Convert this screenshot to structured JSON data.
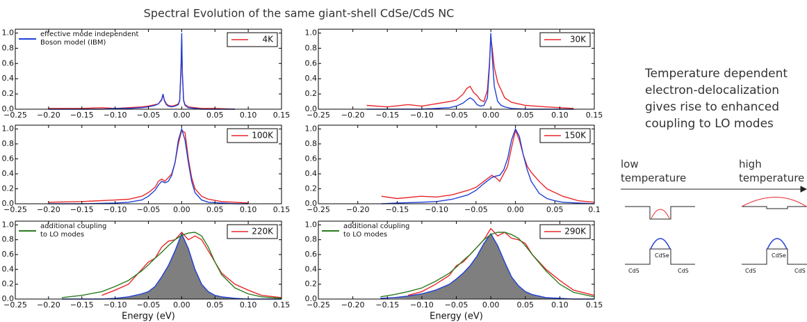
{
  "title": "Spectral Evolution of the same giant-shell CdSe/CdS NC",
  "chart_data": [
    {
      "type": "line",
      "legend_title": null,
      "x": [
        -0.2,
        -0.15,
        -0.12,
        -0.1,
        -0.08,
        -0.06,
        -0.05,
        -0.04,
        -0.035,
        -0.03,
        -0.028,
        -0.026,
        -0.023,
        -0.02,
        -0.015,
        -0.01,
        -0.005,
        -0.003,
        -0.001,
        0,
        0.001,
        0.003,
        0.005,
        0.01,
        0.02,
        0.03,
        0.05,
        0.08
      ],
      "series": [
        {
          "name": "4K",
          "color": "#e8262a",
          "legend": "upper right",
          "values": [
            0.01,
            0.01,
            0.02,
            0.01,
            0.02,
            0.03,
            0.04,
            0.06,
            0.07,
            0.12,
            0.19,
            0.12,
            0.07,
            0.05,
            0.04,
            0.05,
            0.07,
            0.12,
            0.5,
            0.93,
            0.45,
            0.12,
            0.06,
            0.03,
            0.02,
            0.01,
            0.01,
            0
          ]
        },
        {
          "name": "effective mode independent\nBoson model (IBM)",
          "color": "#1f3fd6",
          "legend": "upper left",
          "values": [
            0,
            0,
            0,
            0.01,
            0.01,
            0.02,
            0.03,
            0.05,
            0.07,
            0.13,
            0.2,
            0.11,
            0.06,
            0.04,
            0.03,
            0.04,
            0.06,
            0.11,
            0.55,
            1.0,
            0.5,
            0.11,
            0.05,
            0.02,
            0.01,
            0,
            0,
            0
          ]
        }
      ],
      "xlim": [
        -0.25,
        0.15
      ],
      "ylim": [
        0,
        1.05
      ],
      "xticks": [
        {
          "value": -0.25,
          "label": "−0.25"
        },
        {
          "value": -0.2,
          "label": "−0.20"
        },
        {
          "value": -0.15,
          "label": "−0.15"
        },
        {
          "value": -0.1,
          "label": "−0.10"
        },
        {
          "value": -0.05,
          "label": "−0.05"
        },
        {
          "value": 0,
          "label": "0.00"
        },
        {
          "value": 0.05,
          "label": "0.05"
        },
        {
          "value": 0.1,
          "label": "0.10"
        },
        {
          "value": 0.15,
          "label": "0.15"
        }
      ],
      "yticks": [
        {
          "value": 0,
          "label": "0.0"
        },
        0.2,
        0.4,
        0.6,
        0.8,
        {
          "value": 1,
          "label": "1.0"
        }
      ]
    },
    {
      "type": "line",
      "x": [
        -0.18,
        -0.15,
        -0.12,
        -0.1,
        -0.08,
        -0.06,
        -0.05,
        -0.04,
        -0.035,
        -0.03,
        -0.025,
        -0.02,
        -0.015,
        -0.01,
        -0.005,
        -0.002,
        0,
        0.002,
        0.005,
        0.01,
        0.015,
        0.02,
        0.03,
        0.05,
        0.08,
        0.1,
        0.12
      ],
      "series": [
        {
          "name": "30K",
          "color": "#e8262a",
          "legend": "upper right",
          "values": [
            0.05,
            0.03,
            0.06,
            0.04,
            0.07,
            0.1,
            0.12,
            0.2,
            0.27,
            0.3,
            0.22,
            0.18,
            0.12,
            0.1,
            0.25,
            0.6,
            0.95,
            0.8,
            0.55,
            0.35,
            0.25,
            0.15,
            0.09,
            0.05,
            0.03,
            0.02,
            0.01
          ]
        },
        {
          "color": "#1f3fd6",
          "values": [
            0,
            0,
            0,
            0,
            0.01,
            0.02,
            0.04,
            0.08,
            0.12,
            0.15,
            0.12,
            0.06,
            0.04,
            0.05,
            0.15,
            0.55,
            1.0,
            0.7,
            0.3,
            0.1,
            0.05,
            0.03,
            0.01,
            0,
            0,
            0,
            0
          ]
        }
      ],
      "xlim": [
        -0.25,
        0.15
      ],
      "ylim": [
        0,
        1.05
      ],
      "xticks": [
        {
          "value": -0.25,
          "label": "−0.25"
        },
        {
          "value": -0.2,
          "label": "−0.20"
        },
        {
          "value": -0.15,
          "label": "−0.15"
        },
        {
          "value": -0.1,
          "label": "−0.10"
        },
        {
          "value": -0.05,
          "label": "−0.05"
        },
        {
          "value": 0,
          "label": "0.00"
        },
        {
          "value": 0.05,
          "label": "0.05"
        },
        {
          "value": 0.1,
          "label": "0.10"
        },
        {
          "value": 0.15,
          "label": "0.15"
        }
      ],
      "yticks": [
        {
          "value": 0,
          "label": "0.0"
        },
        0.2,
        0.4,
        0.6,
        0.8,
        {
          "value": 1,
          "label": "1.0"
        }
      ]
    },
    {
      "type": "line",
      "x": [
        -0.2,
        -0.15,
        -0.1,
        -0.08,
        -0.06,
        -0.05,
        -0.04,
        -0.035,
        -0.03,
        -0.025,
        -0.02,
        -0.015,
        -0.01,
        -0.005,
        0,
        0.005,
        0.01,
        0.015,
        0.02,
        0.03,
        0.04,
        0.06,
        0.08,
        0.1
      ],
      "series": [
        {
          "name": "100K",
          "color": "#e8262a",
          "legend": "upper right",
          "values": [
            0.02,
            0.03,
            0.05,
            0.06,
            0.1,
            0.15,
            0.22,
            0.3,
            0.33,
            0.3,
            0.35,
            0.4,
            0.55,
            0.8,
            0.98,
            0.95,
            0.6,
            0.35,
            0.2,
            0.1,
            0.06,
            0.03,
            0.02,
            0.01
          ]
        },
        {
          "color": "#1f3fd6",
          "values": [
            0,
            0,
            0.01,
            0.02,
            0.05,
            0.1,
            0.18,
            0.25,
            0.3,
            0.28,
            0.3,
            0.38,
            0.55,
            0.85,
            1.0,
            0.85,
            0.55,
            0.3,
            0.15,
            0.05,
            0.02,
            0.01,
            0,
            0
          ]
        }
      ],
      "xlim": [
        -0.25,
        0.15
      ],
      "ylim": [
        0,
        1.05
      ],
      "xticks": [
        {
          "value": -0.25,
          "label": "−0.25"
        },
        {
          "value": -0.2,
          "label": "−0.20"
        },
        {
          "value": -0.15,
          "label": "−0.15"
        },
        {
          "value": -0.1,
          "label": "−0.10"
        },
        {
          "value": -0.05,
          "label": "−0.05"
        },
        {
          "value": 0,
          "label": "0.00"
        },
        {
          "value": 0.05,
          "label": "0.05"
        },
        {
          "value": 0.1,
          "label": "0.10"
        },
        {
          "value": 0.15,
          "label": "0.15"
        }
      ],
      "yticks": [
        {
          "value": 0,
          "label": "0.0"
        },
        0.2,
        0.4,
        0.6,
        0.8,
        {
          "value": 1,
          "label": "1.0"
        }
      ]
    },
    {
      "type": "line",
      "x": [
        -0.17,
        -0.15,
        -0.12,
        -0.1,
        -0.08,
        -0.06,
        -0.05,
        -0.04,
        -0.03,
        -0.025,
        -0.02,
        -0.015,
        -0.01,
        -0.005,
        0,
        0.005,
        0.01,
        0.015,
        0.02,
        0.03,
        0.04,
        0.05,
        0.06,
        0.08,
        0.1
      ],
      "series": [
        {
          "name": "150K",
          "color": "#e8262a",
          "legend": "upper right",
          "values": [
            0.1,
            0.07,
            0.1,
            0.09,
            0.12,
            0.18,
            0.22,
            0.3,
            0.38,
            0.35,
            0.3,
            0.4,
            0.5,
            0.75,
            0.98,
            0.85,
            0.65,
            0.5,
            0.42,
            0.3,
            0.2,
            0.15,
            0.1,
            0.04,
            0.02
          ]
        },
        {
          "color": "#1f3fd6",
          "values": [
            0,
            0.01,
            0.02,
            0.03,
            0.06,
            0.12,
            0.18,
            0.27,
            0.35,
            0.37,
            0.38,
            0.45,
            0.6,
            0.85,
            1.0,
            0.9,
            0.65,
            0.45,
            0.3,
            0.14,
            0.07,
            0.04,
            0.02,
            0.01,
            0
          ]
        }
      ],
      "xlim": [
        -0.25,
        0.1
      ],
      "ylim": [
        0,
        1.05
      ],
      "xticks": [
        {
          "value": -0.25,
          "label": "−0.25"
        },
        {
          "value": -0.2,
          "label": "−0.20"
        },
        {
          "value": -0.15,
          "label": "−0.15"
        },
        {
          "value": -0.1,
          "label": "−0.10"
        },
        {
          "value": -0.05,
          "label": "−0.05"
        },
        {
          "value": 0,
          "label": "0.00"
        },
        {
          "value": 0.05,
          "label": "0.05"
        },
        {
          "value": 0.1,
          "label": "0.1"
        }
      ],
      "yticks": [
        {
          "value": 0,
          "label": "0.0"
        },
        0.2,
        0.4,
        0.6,
        0.8,
        {
          "value": 1,
          "label": "1.0"
        }
      ]
    },
    {
      "type": "line",
      "xlabel": "Energy (eV)",
      "x": [
        -0.18,
        -0.15,
        -0.12,
        -0.1,
        -0.08,
        -0.06,
        -0.05,
        -0.04,
        -0.03,
        -0.02,
        -0.01,
        0,
        0.01,
        0.02,
        0.03,
        0.04,
        0.05,
        0.06,
        0.08,
        0.1,
        0.12,
        0.15
      ],
      "series": [
        {
          "color": "#1f3fd6",
          "fill": "#7f7f7f",
          "values": [
            0,
            0,
            0,
            0.01,
            0.03,
            0.07,
            0.1,
            0.17,
            0.3,
            0.45,
            0.65,
            0.88,
            0.68,
            0.4,
            0.2,
            0.1,
            0.05,
            0.03,
            0.01,
            0,
            0,
            0
          ]
        },
        {
          "name": "220K",
          "color": "#e8262a",
          "legend": "upper right",
          "values": [
            null,
            null,
            0.05,
            0.12,
            0.2,
            0.4,
            0.5,
            0.55,
            0.7,
            0.78,
            0.8,
            0.9,
            0.8,
            0.85,
            0.8,
            0.65,
            0.5,
            0.35,
            0.2,
            0.12,
            0.05,
            0.02
          ]
        },
        {
          "name": "additional coupling\nto LO modes",
          "color": "#2a7a1e",
          "legend": "upper left",
          "values": [
            0.02,
            0.05,
            0.1,
            0.17,
            0.25,
            0.38,
            0.46,
            0.55,
            0.63,
            0.72,
            0.8,
            0.86,
            0.89,
            0.9,
            0.85,
            0.7,
            0.5,
            0.33,
            0.15,
            0.07,
            0.03,
            0.01
          ]
        }
      ],
      "xlim": [
        -0.25,
        0.15
      ],
      "ylim": [
        0,
        1.05
      ],
      "xticks": [
        {
          "value": -0.25,
          "label": "−0.25"
        },
        {
          "value": -0.2,
          "label": "−0.20"
        },
        {
          "value": -0.15,
          "label": "−0.15"
        },
        {
          "value": -0.1,
          "label": "−0.10"
        },
        {
          "value": -0.05,
          "label": "−0.05"
        },
        {
          "value": 0,
          "label": "0.00"
        },
        {
          "value": 0.05,
          "label": "0.05"
        },
        {
          "value": 0.1,
          "label": "0.10"
        },
        {
          "value": 0.15,
          "label": "0.15"
        }
      ],
      "yticks": [
        {
          "value": 0,
          "label": "0.0"
        },
        0.2,
        0.4,
        0.6,
        0.8,
        {
          "value": 1,
          "label": "1.0"
        }
      ]
    },
    {
      "type": "line",
      "xlabel": "Energy (eV)",
      "x": [
        -0.16,
        -0.14,
        -0.12,
        -0.1,
        -0.08,
        -0.06,
        -0.05,
        -0.04,
        -0.03,
        -0.02,
        -0.01,
        0,
        0.01,
        0.02,
        0.03,
        0.04,
        0.05,
        0.06,
        0.08,
        0.1,
        0.12,
        0.15
      ],
      "series": [
        {
          "color": "#1f3fd6",
          "fill": "#7f7f7f",
          "values": [
            0.01,
            0.02,
            0.04,
            0.07,
            0.12,
            0.2,
            0.27,
            0.35,
            0.45,
            0.58,
            0.75,
            0.88,
            0.72,
            0.5,
            0.3,
            0.18,
            0.1,
            0.06,
            0.02,
            0.01,
            0,
            0
          ]
        },
        {
          "name": "290K",
          "color": "#e8262a",
          "legend": "upper right",
          "values": [
            null,
            null,
            0.05,
            0.1,
            0.2,
            0.32,
            0.45,
            0.5,
            0.6,
            0.7,
            0.8,
            0.95,
            0.85,
            0.9,
            0.82,
            0.8,
            0.75,
            0.6,
            0.4,
            0.25,
            0.12,
            0.05
          ]
        },
        {
          "name": "additional coupling\nto LO modes",
          "color": "#2a7a1e",
          "legend": "upper left",
          "values": [
            0.03,
            0.06,
            0.1,
            0.15,
            0.24,
            0.35,
            0.43,
            0.52,
            0.6,
            0.7,
            0.8,
            0.87,
            0.9,
            0.9,
            0.87,
            0.82,
            0.72,
            0.6,
            0.38,
            0.2,
            0.09,
            0.03
          ]
        }
      ],
      "xlim": [
        -0.25,
        0.15
      ],
      "ylim": [
        0,
        1.05
      ],
      "xticks": [
        {
          "value": -0.25,
          "label": "−0.25"
        },
        {
          "value": -0.2,
          "label": "−0.20"
        },
        {
          "value": -0.15,
          "label": "−0.15"
        },
        {
          "value": -0.1,
          "label": "−0.10"
        },
        {
          "value": -0.05,
          "label": "−0.05"
        },
        {
          "value": 0,
          "label": "0.00"
        },
        {
          "value": 0.05,
          "label": "0.05"
        },
        {
          "value": 0.1,
          "label": "0.10"
        },
        {
          "value": 0.15,
          "label": "0.15"
        }
      ],
      "yticks": [
        {
          "value": 0,
          "label": "0.0"
        },
        0.2,
        0.4,
        0.6,
        0.8,
        {
          "value": 1,
          "label": "1.0"
        }
      ]
    }
  ],
  "diagram": {
    "text": "Temperature dependent\nelectron-delocalization\ngives rise to enhanced\ncoupling to LO modes",
    "low": {
      "label": "low\ntemperature",
      "shell": "CdS",
      "core": "CdSe",
      "shell_right": "CdS"
    },
    "high": {
      "label": "high\ntemperature",
      "shell": "CdS",
      "core": "CdSe",
      "shell_right": "CdS"
    }
  }
}
